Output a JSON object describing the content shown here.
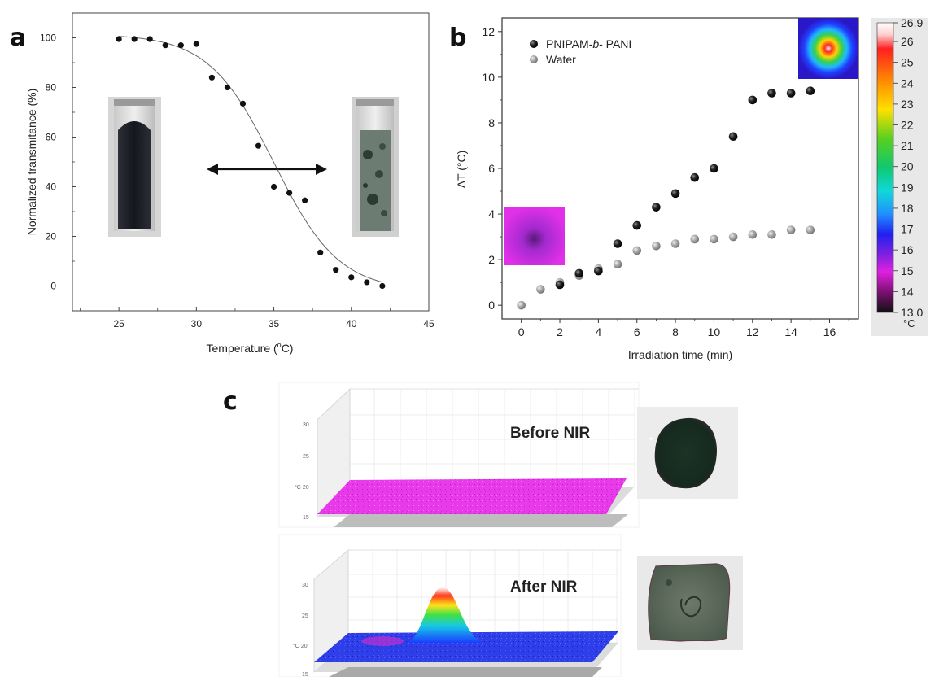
{
  "panels": {
    "a": "a",
    "b": "b",
    "c": "c"
  },
  "chart_data": [
    {
      "type": "scatter",
      "panel": "a",
      "xlabel_prefix": "Temperature (",
      "xlabel_degree": "o",
      "xlabel_suffix": "C)",
      "ylabel": "Normalized transmitance (%)",
      "xlim": [
        22,
        45
      ],
      "ylim": [
        -10,
        110
      ],
      "xticks": [
        25,
        30,
        35,
        40,
        45
      ],
      "yticks": [
        0,
        20,
        40,
        60,
        80,
        100
      ],
      "grid": false,
      "points": [
        [
          25,
          99.5
        ],
        [
          26,
          99.5
        ],
        [
          27,
          99.5
        ],
        [
          28,
          97
        ],
        [
          29,
          97
        ],
        [
          30,
          97.5
        ],
        [
          31,
          84
        ],
        [
          32,
          80
        ],
        [
          33,
          73.5
        ],
        [
          34,
          56.5
        ],
        [
          35,
          40
        ],
        [
          36,
          37.5
        ],
        [
          37,
          34.5
        ],
        [
          38,
          13.5
        ],
        [
          39,
          6.5
        ],
        [
          40,
          3.5
        ],
        [
          41,
          1.5
        ],
        [
          42,
          0
        ]
      ],
      "fit": {
        "kind": "sigmoid",
        "top": 101.5,
        "bottom": -2,
        "midpoint": 35,
        "slope": 2.1,
        "x_range": [
          25,
          42
        ]
      }
    },
    {
      "type": "scatter",
      "panel": "b",
      "xlabel": "Irradiation time (min)",
      "ylabel": "ΔT (°C)",
      "xlim": [
        -1,
        17.5
      ],
      "ylim": [
        -0.6,
        12.6
      ],
      "xticks": [
        0,
        2,
        4,
        6,
        8,
        10,
        12,
        14,
        16
      ],
      "yticks": [
        0,
        2,
        4,
        6,
        8,
        10,
        12
      ],
      "grid": false,
      "legend_position": "top-left",
      "series": [
        {
          "name": "PNIPAM-b- PANI",
          "name_parts": [
            "PNIPAM-",
            "b",
            "- PANI"
          ],
          "color": "#1a1a1a",
          "x": [
            2,
            3,
            4,
            5,
            6,
            7,
            8,
            9,
            10,
            11,
            12,
            13,
            14,
            15
          ],
          "y": [
            0.9,
            1.4,
            1.5,
            2.7,
            3.5,
            4.3,
            4.9,
            5.6,
            6.0,
            7.4,
            9.0,
            9.3,
            9.3,
            9.4
          ]
        },
        {
          "name": "Water",
          "color": "#9a9a9a",
          "x": [
            0,
            1,
            2,
            3,
            4,
            5,
            6,
            7,
            8,
            9,
            10,
            11,
            12,
            13,
            14,
            15
          ],
          "y": [
            0,
            0.7,
            1.0,
            1.3,
            1.6,
            1.8,
            2.4,
            2.6,
            2.7,
            2.9,
            2.9,
            3.0,
            3.1,
            3.1,
            3.3,
            3.3
          ]
        }
      ],
      "colorbar": {
        "labels": [
          "26.9",
          "26",
          "25",
          "24",
          "23",
          "22",
          "21",
          "20",
          "19",
          "18",
          "17",
          "16",
          "15",
          "14",
          "13.0"
        ],
        "unit": "°C"
      }
    }
  ],
  "panel_c": {
    "before_label": "Before NIR",
    "after_label": "After NIR",
    "axis_ticks": [
      "30",
      "25",
      "20",
      "15"
    ],
    "axis_unit": "°C"
  }
}
